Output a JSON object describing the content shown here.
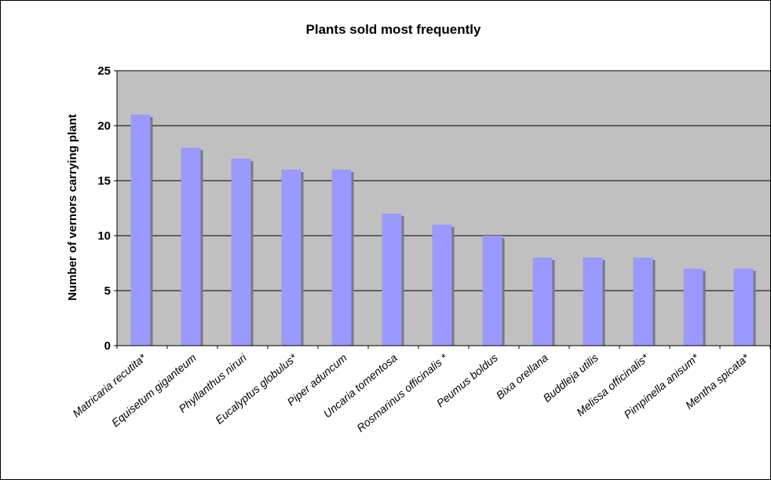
{
  "chart_data": {
    "type": "bar",
    "title": "Plants sold most frequently",
    "xlabel": "",
    "ylabel": "Number of vernors carrying plant",
    "categories": [
      "Matricaria recutita*",
      "Equisetum giganteum",
      "Phyllanthus niruri",
      "Eucalyptus globulus*",
      "Piper aduncum",
      "Uncaria tomentosa",
      "Rosmarinus officinalis *",
      "Peumus boldus",
      "Bixa orellana",
      "Buddleja utilis",
      "Melissa officinalis*",
      "Pimpinella anisum*",
      "Mentha spicata*"
    ],
    "values": [
      21,
      18,
      17,
      16,
      16,
      12,
      11,
      10,
      8,
      8,
      8,
      7,
      7
    ],
    "ylim": [
      0,
      25
    ],
    "yticks": [
      0,
      5,
      10,
      15,
      20,
      25
    ],
    "grid": true,
    "legend": "none",
    "colors": {
      "plot_background": "#c0c0c0",
      "bar_fill": "#9999ff",
      "bar_shadow": "#7a7a7a",
      "gridline": "#000000"
    }
  }
}
